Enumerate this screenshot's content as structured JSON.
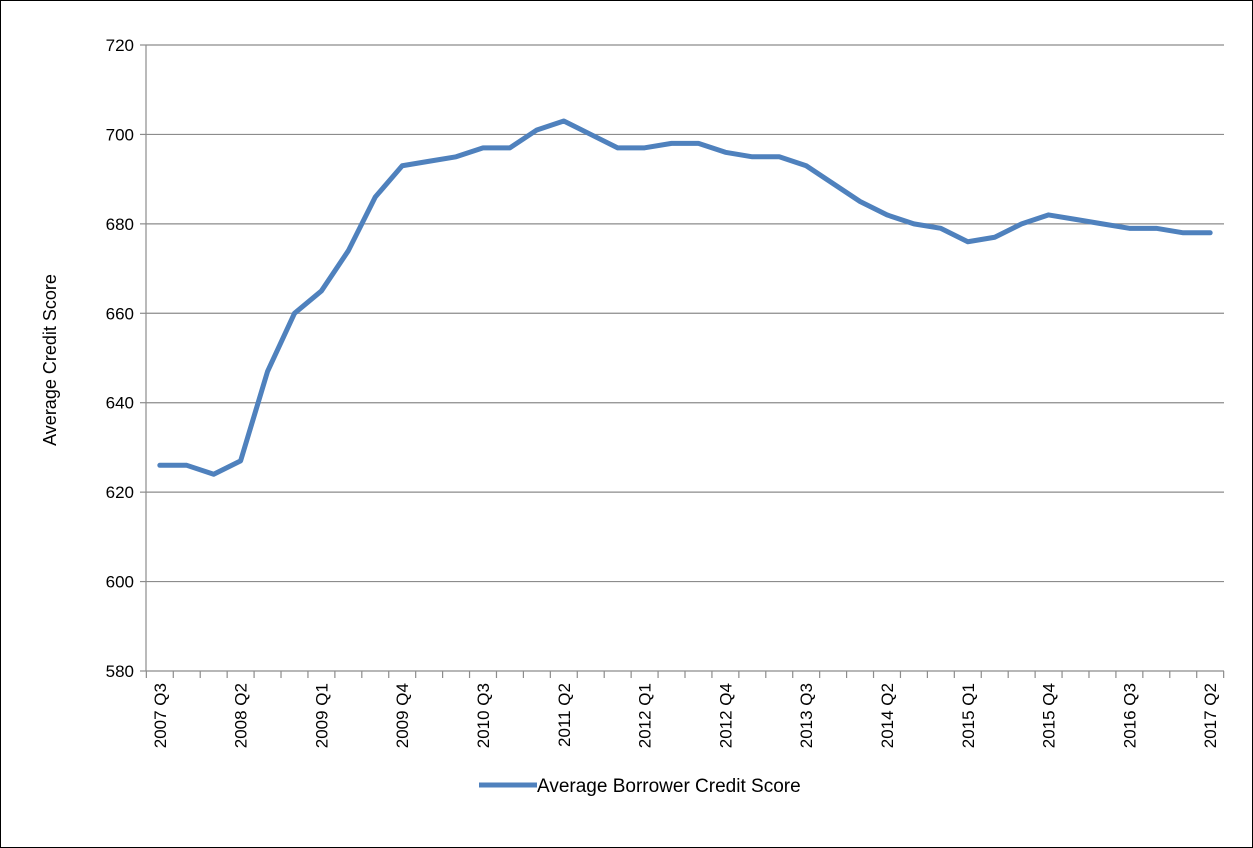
{
  "chart_data": {
    "type": "line",
    "title": "",
    "xlabel": "",
    "ylabel": "Average  Credit Score",
    "ylim": [
      580,
      720
    ],
    "yticks": [
      580,
      600,
      620,
      640,
      660,
      680,
      700,
      720
    ],
    "grid": true,
    "legend_position": "bottom-center",
    "categories": [
      "2007 Q3",
      "2007 Q4",
      "2008 Q1",
      "2008 Q2",
      "2008 Q3",
      "2008 Q4",
      "2009 Q1",
      "2009 Q2",
      "2009 Q3",
      "2009 Q4",
      "2010 Q1",
      "2010 Q2",
      "2010 Q3",
      "2010 Q4",
      "2011 Q1",
      "2011 Q2",
      "2011 Q3",
      "2011 Q4",
      "2012 Q1",
      "2012 Q2",
      "2012 Q3",
      "2012 Q4",
      "2013 Q1",
      "2013 Q2",
      "2013 Q3",
      "2013 Q4",
      "2014 Q1",
      "2014 Q2",
      "2014 Q3",
      "2014 Q4",
      "2015 Q1",
      "2015 Q2",
      "2015 Q3",
      "2015 Q4",
      "2016 Q1",
      "2016 Q2",
      "2016 Q3",
      "2016 Q4",
      "2017 Q1",
      "2017 Q2"
    ],
    "tick_labels": [
      "2007 Q3",
      "2008 Q2",
      "2009 Q1",
      "2009 Q4",
      "2010 Q3",
      "2011 Q2",
      "2012 Q1",
      "2012 Q4",
      "2013 Q3",
      "2014 Q2",
      "2015 Q1",
      "2015 Q4",
      "2016 Q3",
      "2017 Q2"
    ],
    "series": [
      {
        "name": "Average Borrower Credit Score",
        "color": "#4F81BD",
        "values": [
          626,
          626,
          624,
          627,
          647,
          660,
          665,
          674,
          686,
          693,
          694,
          695,
          697,
          697,
          701,
          703,
          700,
          697,
          697,
          698,
          698,
          696,
          695,
          695,
          693,
          689,
          685,
          682,
          680,
          679,
          676,
          677,
          680,
          682,
          681,
          680,
          679,
          679,
          678,
          678
        ]
      }
    ]
  }
}
